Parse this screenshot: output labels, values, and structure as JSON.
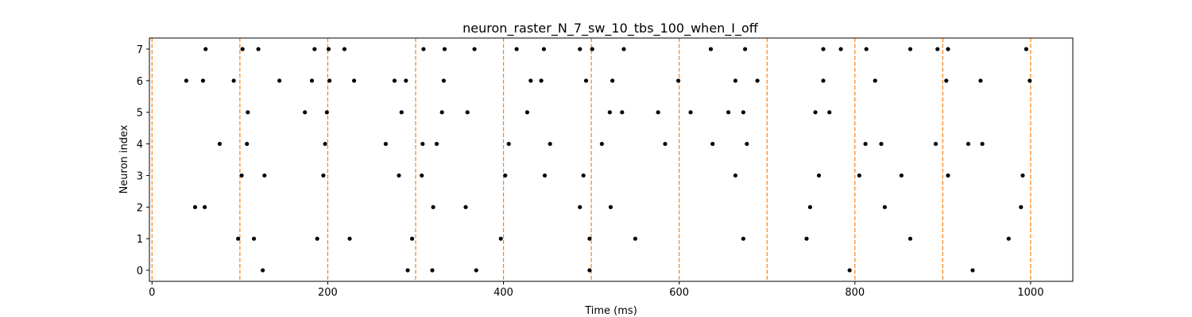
{
  "chart_data": {
    "type": "scatter",
    "title": "neuron_raster_N_7_sw_10_tbs_100_when_I_off",
    "xlabel": "Time (ms)",
    "ylabel": "Neuron index",
    "xlim": [
      -3,
      1048
    ],
    "ylim": [
      -0.35,
      7.35
    ],
    "xticks": [
      0,
      200,
      400,
      600,
      800,
      1000
    ],
    "yticks": [
      0,
      1,
      2,
      3,
      4,
      5,
      6,
      7
    ],
    "grid": false,
    "marker_color": "#000000",
    "vline_color": "#ff7f0e",
    "vlines": [
      0,
      100,
      200,
      300,
      400,
      500,
      600,
      700,
      800,
      900,
      1000
    ],
    "series": [
      {
        "neuron": 0,
        "spikes": [
          126,
          291,
          319,
          369,
          498,
          794,
          934
        ]
      },
      {
        "neuron": 1,
        "spikes": [
          98,
          116,
          188,
          225,
          296,
          397,
          498,
          550,
          673,
          745,
          863,
          975
        ]
      },
      {
        "neuron": 2,
        "spikes": [
          49,
          60,
          320,
          357,
          487,
          522,
          749,
          834,
          989
        ]
      },
      {
        "neuron": 3,
        "spikes": [
          102,
          128,
          195,
          281,
          307,
          402,
          447,
          491,
          664,
          759,
          805,
          853,
          906,
          991
        ]
      },
      {
        "neuron": 4,
        "spikes": [
          77,
          108,
          197,
          266,
          308,
          324,
          406,
          453,
          512,
          584,
          638,
          677,
          812,
          830,
          892,
          929,
          945
        ]
      },
      {
        "neuron": 5,
        "spikes": [
          109,
          174,
          199,
          284,
          330,
          359,
          427,
          521,
          535,
          576,
          613,
          656,
          673,
          755,
          771
        ]
      },
      {
        "neuron": 6,
        "spikes": [
          39,
          58,
          93,
          145,
          182,
          202,
          230,
          276,
          289,
          332,
          431,
          443,
          494,
          524,
          599,
          664,
          689,
          764,
          823,
          904,
          943,
          999
        ]
      },
      {
        "neuron": 7,
        "spikes": [
          61,
          103,
          121,
          185,
          201,
          219,
          309,
          333,
          367,
          415,
          446,
          487,
          501,
          537,
          636,
          675,
          764,
          784,
          813,
          863,
          894,
          906,
          995
        ]
      }
    ]
  }
}
